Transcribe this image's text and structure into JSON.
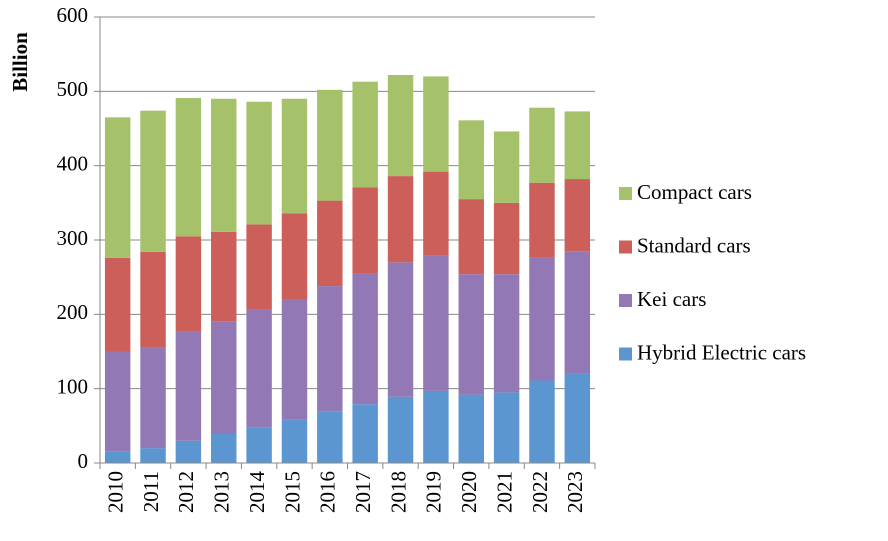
{
  "chart_data": {
    "type": "stacked_bar",
    "y_label": "Billion",
    "categories": [
      "2010",
      "2011",
      "2012",
      "2013",
      "2014",
      "2015",
      "2016",
      "2017",
      "2018",
      "2019",
      "2020",
      "2021",
      "2022",
      "2023"
    ],
    "series": [
      {
        "name": "Hybrid Electric cars",
        "color": "#5b96d0",
        "values": [
          15,
          20,
          30,
          39,
          48,
          58,
          69,
          79,
          89,
          97,
          92,
          95,
          111,
          121
        ]
      },
      {
        "name": "Kei cars",
        "color": "#9279b5",
        "values": [
          135,
          136,
          147,
          151,
          158,
          162,
          169,
          176,
          181,
          182,
          162,
          159,
          165,
          164
        ]
      },
      {
        "name": "Standard cars",
        "color": "#cd5f5a",
        "values": [
          126,
          128,
          128,
          121,
          115,
          116,
          115,
          116,
          116,
          113,
          101,
          96,
          101,
          97
        ]
      },
      {
        "name": "Compact cars",
        "color": "#a5c26a",
        "values": [
          189,
          190,
          186,
          179,
          165,
          154,
          149,
          142,
          136,
          128,
          106,
          96,
          101,
          91
        ]
      }
    ],
    "ylim": [
      0,
      600
    ],
    "yticks": [
      0,
      100,
      200,
      300,
      400,
      500,
      600
    ],
    "grid": true,
    "legend": "right"
  }
}
